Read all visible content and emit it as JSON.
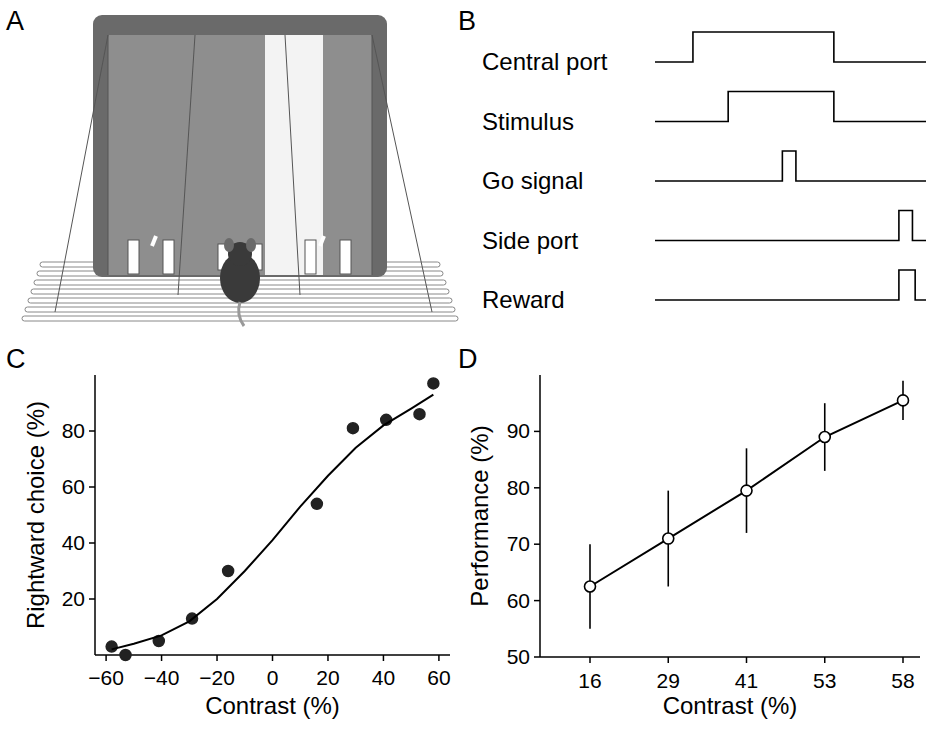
{
  "figure": {
    "panel_labels": [
      "A",
      "B",
      "C",
      "D"
    ]
  },
  "timing_diagram": {
    "rows": [
      {
        "label": "Central port",
        "high": [
          0.14,
          0.66
        ]
      },
      {
        "label": "Stimulus",
        "high": [
          0.27,
          0.66
        ]
      },
      {
        "label": "Go signal",
        "high": [
          0.47,
          0.52
        ]
      },
      {
        "label": "Side port",
        "high": [
          0.9,
          0.95
        ]
      },
      {
        "label": "Reward",
        "high": [
          0.9,
          0.96
        ]
      }
    ]
  },
  "chart_data": [
    {
      "type": "scatter",
      "x_label": "Contrast (%)",
      "y_label": "Rightward choice (%)",
      "xlim": [
        -64,
        64
      ],
      "ylim": [
        0,
        100
      ],
      "xticks": [
        {
          "value": -60,
          "label": "−60"
        },
        {
          "value": -40,
          "label": "−40"
        },
        {
          "value": -20,
          "label": "−20"
        },
        0,
        20,
        40,
        60
      ],
      "yticks": [
        20,
        40,
        60,
        80
      ],
      "series": [
        {
          "type": "scatter",
          "marker": "circle",
          "color": "#222222",
          "x": [
            -58,
            -53,
            -41,
            -29,
            -16,
            16,
            29,
            41,
            53,
            58
          ],
          "values": [
            3,
            0,
            5,
            13,
            30,
            54,
            81,
            84,
            86,
            97
          ]
        },
        {
          "type": "line",
          "line_style": "solid",
          "color": "#000000",
          "x": [
            -58,
            -50,
            -40,
            -30,
            -20,
            -10,
            0,
            10,
            20,
            30,
            40,
            50,
            58
          ],
          "values": [
            2,
            4,
            7,
            12,
            20,
            30,
            41,
            53,
            64,
            74,
            82,
            88,
            93
          ]
        }
      ]
    },
    {
      "type": "line",
      "marker": "open_circle",
      "color": "#000000",
      "x_label": "Contrast (%)",
      "y_label": "Performance (%)",
      "categories": [
        "16",
        "29",
        "41",
        "53",
        "58"
      ],
      "values": [
        62.5,
        71,
        79.5,
        89,
        95.5
      ],
      "errors": [
        7.5,
        8.5,
        7.5,
        6,
        3.5
      ],
      "ylim": [
        50,
        100
      ],
      "yticks": [
        50,
        60,
        70,
        80,
        90
      ]
    }
  ]
}
